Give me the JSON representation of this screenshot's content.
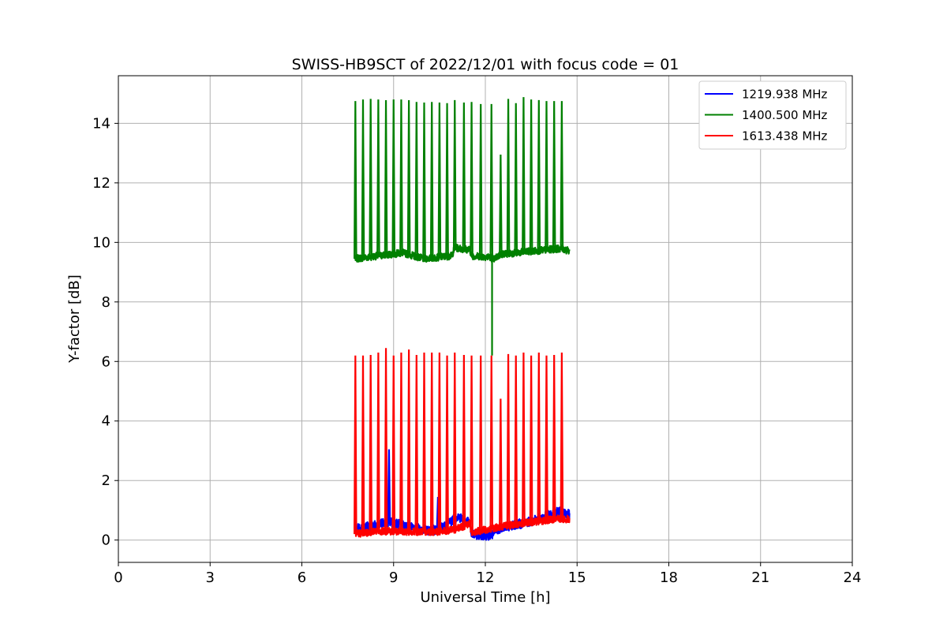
{
  "chart_data": {
    "type": "line",
    "title": "SWISS-HB9SCT of 2022/12/01 with focus code = 01",
    "xlabel": "Universal Time [h]",
    "ylabel": "Y-factor [dB]",
    "xlim": [
      0,
      24
    ],
    "ylim": [
      -0.75,
      15.6
    ],
    "xticks": [
      0,
      3,
      6,
      9,
      12,
      15,
      18,
      21,
      24
    ],
    "yticks": [
      0,
      2,
      4,
      6,
      8,
      10,
      12,
      14
    ],
    "grid": true,
    "legend_position": "top-right",
    "start_time": 7.75,
    "end_time": 14.75,
    "series": [
      {
        "name": "1219.938 MHz",
        "color": "#0000ff",
        "baseline": [
          [
            7.75,
            0.38
          ],
          [
            8.5,
            0.5
          ],
          [
            8.8,
            0.62
          ],
          [
            9.5,
            0.45
          ],
          [
            10.2,
            0.3
          ],
          [
            10.6,
            0.42
          ],
          [
            11.1,
            0.8
          ],
          [
            11.5,
            0.55
          ],
          [
            11.55,
            0.2
          ],
          [
            12.2,
            0.15
          ],
          [
            12.5,
            0.42
          ],
          [
            13.5,
            0.62
          ],
          [
            14.4,
            0.95
          ],
          [
            14.75,
            0.85
          ]
        ],
        "spikes": [
          [
            7.75,
            1.3
          ],
          [
            8.85,
            3.05
          ],
          [
            10.45,
            1.45
          ]
        ]
      },
      {
        "name": "1400.500 MHz",
        "color": "#008000",
        "baseline": [
          [
            7.75,
            9.45
          ],
          [
            8.5,
            9.55
          ],
          [
            9.3,
            9.65
          ],
          [
            10.0,
            9.45
          ],
          [
            10.9,
            9.55
          ],
          [
            11.0,
            9.82
          ],
          [
            11.5,
            9.75
          ],
          [
            11.55,
            9.55
          ],
          [
            12.2,
            9.5
          ],
          [
            12.23,
            9.4
          ],
          [
            12.5,
            9.6
          ],
          [
            13.5,
            9.7
          ],
          [
            14.5,
            9.8
          ],
          [
            14.75,
            9.7
          ]
        ],
        "spikes": [
          [
            7.75,
            14.75
          ],
          [
            8.0,
            14.8
          ],
          [
            8.25,
            14.82
          ],
          [
            8.5,
            14.8
          ],
          [
            8.75,
            14.78
          ],
          [
            9.0,
            14.8
          ],
          [
            9.25,
            14.8
          ],
          [
            9.5,
            14.78
          ],
          [
            9.75,
            14.72
          ],
          [
            10.0,
            14.7
          ],
          [
            10.25,
            14.72
          ],
          [
            10.5,
            14.7
          ],
          [
            10.75,
            14.68
          ],
          [
            11.0,
            14.78
          ],
          [
            11.3,
            14.7
          ],
          [
            11.55,
            14.72
          ],
          [
            11.85,
            14.65
          ],
          [
            12.2,
            14.65
          ],
          [
            12.5,
            12.95
          ],
          [
            12.75,
            14.82
          ],
          [
            13.0,
            14.68
          ],
          [
            13.25,
            14.88
          ],
          [
            13.5,
            14.8
          ],
          [
            13.75,
            14.78
          ],
          [
            14.0,
            14.75
          ],
          [
            14.25,
            14.75
          ],
          [
            14.5,
            14.75
          ]
        ],
        "drop": [
          12.22,
          6.2
        ]
      },
      {
        "name": "1613.438 MHz",
        "color": "#ff0000",
        "baseline": [
          [
            7.75,
            0.2
          ],
          [
            8.5,
            0.3
          ],
          [
            9.5,
            0.28
          ],
          [
            10.5,
            0.28
          ],
          [
            11.0,
            0.35
          ],
          [
            11.5,
            0.55
          ],
          [
            11.55,
            0.25
          ],
          [
            12.5,
            0.45
          ],
          [
            13.5,
            0.6
          ],
          [
            14.4,
            0.72
          ],
          [
            14.75,
            0.7
          ]
        ],
        "spikes": [
          [
            7.75,
            6.2
          ],
          [
            8.0,
            6.2
          ],
          [
            8.25,
            6.22
          ],
          [
            8.5,
            6.3
          ],
          [
            8.75,
            6.45
          ],
          [
            9.0,
            6.2
          ],
          [
            9.25,
            6.3
          ],
          [
            9.5,
            6.4
          ],
          [
            9.75,
            6.22
          ],
          [
            10.0,
            6.3
          ],
          [
            10.25,
            6.3
          ],
          [
            10.5,
            6.3
          ],
          [
            10.75,
            6.2
          ],
          [
            11.0,
            6.3
          ],
          [
            11.3,
            6.22
          ],
          [
            11.55,
            6.2
          ],
          [
            11.85,
            6.2
          ],
          [
            12.2,
            6.2
          ],
          [
            12.5,
            4.75
          ],
          [
            12.75,
            6.25
          ],
          [
            13.0,
            6.2
          ],
          [
            13.25,
            6.3
          ],
          [
            13.5,
            6.2
          ],
          [
            13.75,
            6.3
          ],
          [
            14.0,
            6.2
          ],
          [
            14.25,
            6.22
          ],
          [
            14.5,
            6.3
          ]
        ]
      }
    ]
  }
}
